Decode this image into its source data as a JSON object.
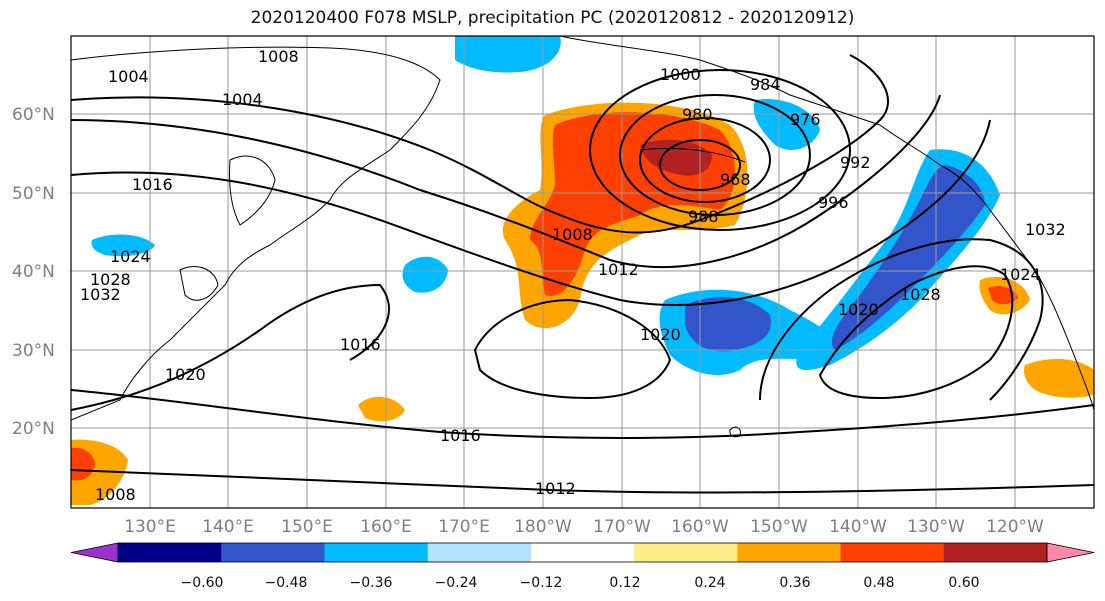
{
  "title": "2020120400 F078 MSLP, precipitation PC (2020120812 - 2020120912)",
  "latitude_labels": [
    "60°N",
    "50°N",
    "40°N",
    "30°N",
    "20°N"
  ],
  "longitude_labels": [
    "130°E",
    "140°E",
    "150°E",
    "160°E",
    "170°E",
    "180°W",
    "170°W",
    "160°W",
    "150°W",
    "140°W",
    "130°W",
    "120°W"
  ],
  "isobar_labels": [
    "1004",
    "1008",
    "1004",
    "1000",
    "984",
    "976",
    "980",
    "968",
    "992",
    "996",
    "988",
    "1008",
    "1012",
    "1016",
    "1016",
    "1020",
    "1020",
    "1028",
    "1032",
    "1024",
    "1016",
    "1012",
    "1020",
    "1028",
    "1024",
    "1032",
    "1008"
  ],
  "colorbar": {
    "colors": [
      "#9933cc",
      "#000088",
      "#3355cc",
      "#00bbff",
      "#b3e3ff",
      "#ffffff",
      "#ffee88",
      "#ffa500",
      "#ff4000",
      "#b22222",
      "#ff88aa"
    ],
    "tick_labels": [
      "−0.60",
      "−0.48",
      "−0.36",
      "−0.24",
      "−0.12",
      "0.12",
      "0.24",
      "0.36",
      "0.48",
      "0.60"
    ]
  }
}
